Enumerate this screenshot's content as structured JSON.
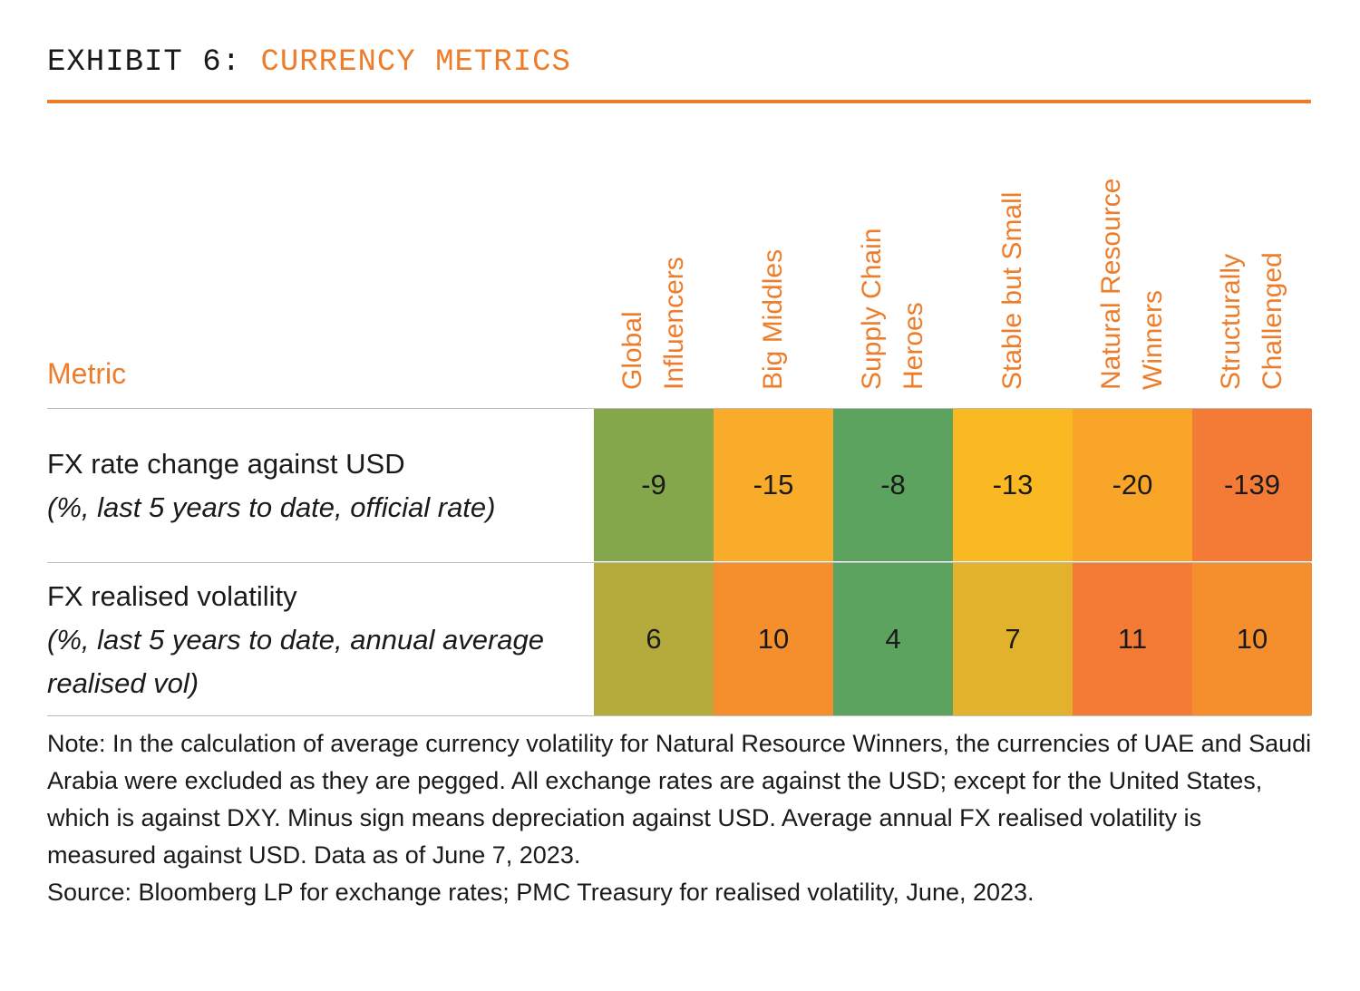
{
  "header": {
    "prefix": "EXHIBIT 6:",
    "title": "CURRENCY METRICS"
  },
  "chart_data": {
    "type": "heatmap",
    "row_header": "Metric",
    "columns": [
      [
        "Global",
        "Influencers"
      ],
      [
        "Big Middles"
      ],
      [
        "Supply Chain",
        "Heroes"
      ],
      [
        "Stable but Small"
      ],
      [
        "Natural Resource",
        "Winners"
      ],
      [
        "Structurally",
        "Challenged"
      ]
    ],
    "rows": [
      {
        "label": "FX rate change against USD",
        "sub": " (%, last 5 years to date, official rate)",
        "values": [
          -9,
          -15,
          -8,
          -13,
          -20,
          -139
        ],
        "colors": [
          "#84a74c",
          "#f9ab2a",
          "#5ba35f",
          "#fab822",
          "#f9a628",
          "#f37b35"
        ]
      },
      {
        "label": "FX realised volatility",
        "sub": "(%, last 5 years to date, annual average realised vol)",
        "values": [
          6,
          10,
          4,
          7,
          11,
          10
        ],
        "colors": [
          "#b4ab3c",
          "#f58f2e",
          "#5ba35f",
          "#e2b22c",
          "#f37b35",
          "#f58f2e"
        ]
      }
    ]
  },
  "note": {
    "line1": "Note: In the calculation of average currency volatility for Natural Resource Winners, the currencies of UAE and Saudi Arabia were excluded as they are pegged. All exchange rates are against the USD; except for the United States, which is against DXY. Minus sign means depreciation against USD. Average annual FX realised volatility is measured against USD. Data as of June 7, 2023.",
    "line2": "Source: Bloomberg LP for exchange rates; PMC Treasury for realised volatility, June, 2023."
  }
}
